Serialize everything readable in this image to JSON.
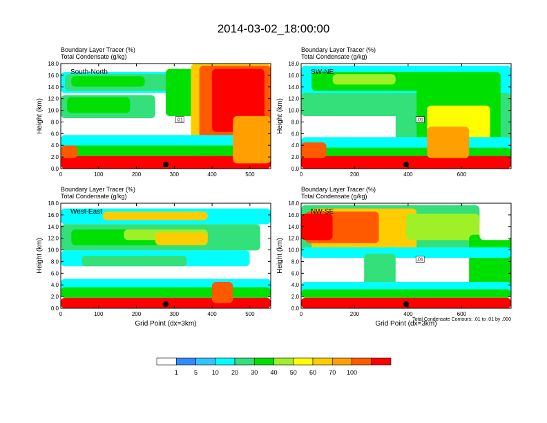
{
  "title": "2014-03-02_18:00:00",
  "chart_data": [
    {
      "type": "heatmap",
      "panel_label": "South-North",
      "left_title_1": "Boundary Layer Tracer   (%)",
      "left_title_2": "Total Condensate   (g/kg)",
      "ylabel": "Height (km)",
      "xlabel": "",
      "xlim": [
        0,
        555
      ],
      "ylim": [
        0,
        18
      ],
      "xticks": [
        0,
        100,
        200,
        300,
        400,
        500
      ],
      "yticks": [
        "0.0",
        "2.0",
        "4.0",
        "6.0",
        "8.0",
        "10.0",
        "12.0",
        "14.0",
        "16.0",
        "18.0"
      ],
      "contour_labels": [
        ".01"
      ]
    },
    {
      "type": "heatmap",
      "panel_label": "SW-NE",
      "left_title_1": "Boundary Layer Tracer   (%)",
      "left_title_2": "Total Condensate   (g/kg)",
      "ylabel": "Height (km)",
      "xlabel": "",
      "xlim": [
        0,
        785
      ],
      "ylim": [
        0,
        18
      ],
      "xticks": [
        0,
        200,
        400,
        600
      ],
      "yticks": [
        "0.0",
        "2.0",
        "4.0",
        "6.0",
        "8.0",
        "10.0",
        "12.0",
        "14.0",
        "16.0",
        "18.0"
      ],
      "contour_labels": [
        ".01"
      ]
    },
    {
      "type": "heatmap",
      "panel_label": "West-East",
      "left_title_1": "Boundary Layer Tracer   (%)",
      "left_title_2": "Total Condensate   (g/kg)",
      "ylabel": "Height (km)",
      "xlabel": "Grid Point (dx=3km)",
      "xlim": [
        0,
        555
      ],
      "ylim": [
        0,
        18
      ],
      "xticks": [
        0,
        100,
        200,
        300,
        400,
        500
      ],
      "yticks": [
        "0.0",
        "2.0",
        "4.0",
        "6.0",
        "8.0",
        "10.0",
        "12.0",
        "14.0",
        "16.0",
        "18.0"
      ],
      "contour_labels": []
    },
    {
      "type": "heatmap",
      "panel_label": "NW-SE",
      "left_title_1": "Boundary Layer Tracer   (%)",
      "left_title_2": "Total Condensate   (g/kg)",
      "ylabel": "Height (km)",
      "xlabel": "Grid Point (dx=3km)",
      "xlim": [
        0,
        785
      ],
      "ylim": [
        0,
        18
      ],
      "xticks": [
        0,
        200,
        400,
        600
      ],
      "yticks": [
        "0.0",
        "2.0",
        "4.0",
        "6.0",
        "8.0",
        "10.0",
        "12.0",
        "14.0",
        "16.0",
        "18.0"
      ],
      "contour_labels": [
        ".01"
      ],
      "contour_note": "Total Condensate Contours: .01 to .01 by .000"
    }
  ],
  "colorbar": {
    "levels": [
      "1",
      "5",
      "10",
      "20",
      "30",
      "40",
      "50",
      "60",
      "70",
      "100"
    ],
    "colors": [
      "#ffffff",
      "#2f8cff",
      "#34c3ff",
      "#00ffff",
      "#33e07a",
      "#00e000",
      "#a0f028",
      "#ffff00",
      "#ffcc00",
      "#ffa000",
      "#ff5a00",
      "#ff0000"
    ]
  }
}
